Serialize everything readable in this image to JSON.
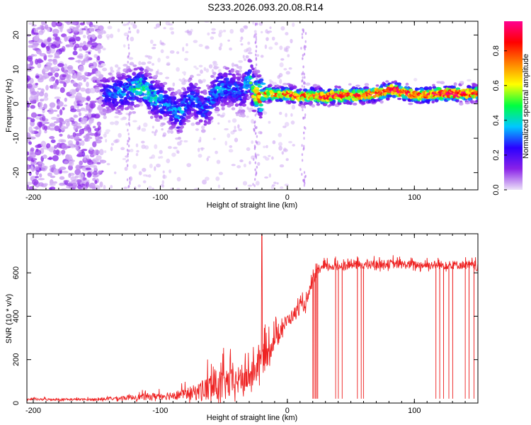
{
  "title": "S233.2026.093.20.08.R14",
  "chart_data": [
    {
      "type": "heatmap",
      "xlabel": "Height of straight line (km)",
      "ylabel": "Frequency (Hz)",
      "xlim": [
        -205,
        150
      ],
      "ylim": [
        -25,
        24
      ],
      "xticks": [
        -200,
        -100,
        0,
        100
      ],
      "yticks": [
        -20,
        -10,
        0,
        10,
        20
      ],
      "colorbar": {
        "label": "Normalized spectral amplitude",
        "range": [
          0,
          0.97
        ],
        "ticks": [
          0.0,
          0.2,
          0.4,
          0.6,
          0.8
        ],
        "colors": [
          "#ece2f8",
          "#8a22e8",
          "#2a00ff",
          "#00c8ff",
          "#00ff40",
          "#ffff00",
          "#ff8000",
          "#ff0000",
          "#ff0090"
        ]
      },
      "ridge": {
        "x": [
          -145,
          -135,
          -125,
          -115,
          -105,
          -95,
          -85,
          -75,
          -65,
          -55,
          -45,
          -35,
          -30,
          -25,
          -22,
          -15,
          -5,
          0,
          10,
          20,
          30,
          40,
          50,
          60,
          70,
          80,
          85,
          90,
          95,
          100,
          110,
          120,
          130,
          140,
          150
        ],
        "y": [
          3,
          3,
          4,
          5,
          2,
          0,
          -3,
          2,
          -2,
          4,
          5,
          3,
          8,
          3,
          2,
          3,
          2.5,
          3,
          2,
          2.5,
          2,
          2.5,
          2.5,
          2.5,
          3,
          4,
          4,
          3.5,
          3,
          2.5,
          2.5,
          3,
          3,
          3,
          3
        ],
        "amp": [
          0.25,
          0.3,
          0.35,
          0.45,
          0.4,
          0.3,
          0.35,
          0.3,
          0.3,
          0.35,
          0.3,
          0.3,
          0.35,
          0.6,
          0.75,
          0.7,
          0.7,
          0.8,
          0.8,
          0.8,
          0.85,
          0.9,
          0.85,
          0.8,
          0.85,
          0.9,
          0.95,
          0.9,
          0.85,
          0.8,
          0.85,
          0.9,
          0.95,
          0.9,
          0.85
        ]
      }
    },
    {
      "type": "line",
      "xlabel": "Height of straight line (km)",
      "ylabel": "SNR (10 * v/v)",
      "xlim": [
        -205,
        150
      ],
      "ylim": [
        0,
        780
      ],
      "xticks": [
        -200,
        -100,
        0,
        100
      ],
      "yticks": [
        0,
        200,
        400,
        600
      ],
      "series": [
        {
          "color": "#ee2222",
          "envelope": {
            "x": [
              -205,
              -180,
              -150,
              -130,
              -110,
              -90,
              -80,
              -70,
              -60,
              -50,
              -40,
              -30,
              -25,
              -20,
              -15,
              -10,
              -5,
              0,
              5,
              10,
              15,
              20,
              25,
              30,
              40,
              50,
              60,
              80,
              100,
              120,
              140,
              150
            ],
            "base": [
              15,
              15,
              15,
              20,
              25,
              30,
              35,
              40,
              50,
              60,
              80,
              100,
              130,
              170,
              220,
              280,
              330,
              370,
              400,
              430,
              450,
              560,
              610,
              620,
              625,
              630,
              630,
              635,
              630,
              630,
              630,
              620
            ],
            "amp": [
              10,
              10,
              10,
              20,
              30,
              40,
              50,
              80,
              150,
              150,
              130,
              120,
              130,
              140,
              120,
              90,
              80,
              60,
              60,
              60,
              50,
              50,
              40,
              40,
              40,
              40,
              40,
              40,
              40,
              40,
              40,
              40
            ]
          },
          "peak": {
            "x": -20,
            "y": 780
          },
          "dropouts_x": [
            20,
            21,
            22,
            23,
            24,
            38,
            40,
            43,
            55,
            58,
            60,
            117,
            120,
            123,
            127,
            130,
            140,
            143,
            147
          ]
        }
      ]
    }
  ]
}
